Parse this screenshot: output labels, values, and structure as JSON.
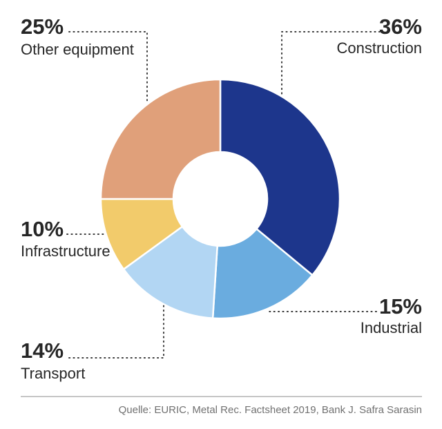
{
  "chart_data": {
    "type": "pie",
    "variant": "donut",
    "title": "",
    "unit": "%",
    "legend": "none",
    "slices": [
      {
        "label": "Construction",
        "value": 36,
        "value_label": "36%",
        "color": "#1d368c"
      },
      {
        "label": "Industrial",
        "value": 15,
        "value_label": "15%",
        "color": "#6aacdf"
      },
      {
        "label": "Transport",
        "value": 14,
        "value_label": "14%",
        "color": "#b2d6f3"
      },
      {
        "label": "Infrastructure",
        "value": 10,
        "value_label": "10%",
        "color": "#f2cb6b"
      },
      {
        "label": "Other equipment",
        "value": 25,
        "value_label": "25%",
        "color": "#e0a07a"
      }
    ]
  },
  "footer": {
    "source": "Quelle: EURIC, Metal Rec. Factsheet 2019, Bank J. Safra Sarasin"
  }
}
